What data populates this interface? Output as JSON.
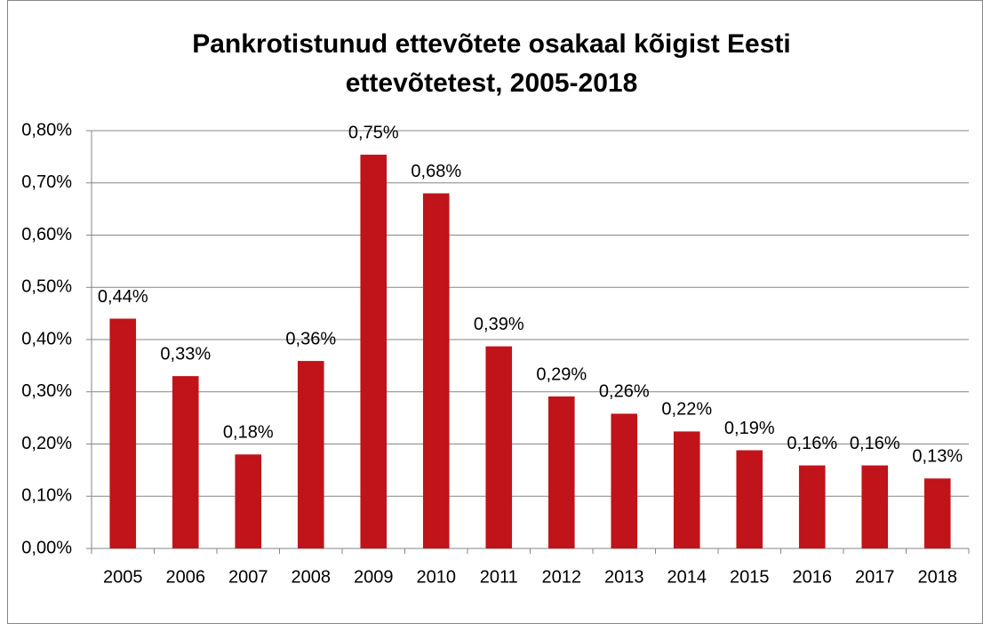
{
  "chart_data": {
    "type": "bar",
    "title": "Pankrotistunud ettevõtete osakaal kõigist Eesti ettevõtetest, 2005-2018",
    "categories": [
      "2005",
      "2006",
      "2007",
      "2008",
      "2009",
      "2010",
      "2011",
      "2012",
      "2013",
      "2014",
      "2015",
      "2016",
      "2017",
      "2018"
    ],
    "values": [
      0.44,
      0.33,
      0.18,
      0.359,
      0.754,
      0.68,
      0.387,
      0.291,
      0.258,
      0.224,
      0.188,
      0.159,
      0.159,
      0.134
    ],
    "value_labels": [
      "0,44%",
      "0,33%",
      "0,18%",
      "0,36%",
      "0,75%",
      "0,68%",
      "0,39%",
      "0,29%",
      "0,26%",
      "0,22%",
      "0,19%",
      "0,16%",
      "0,16%",
      "0,13%"
    ],
    "color": "#c0141a",
    "ylim": [
      0,
      0.8
    ],
    "yticks": [
      {
        "value": 0,
        "label": "0,00%"
      },
      {
        "value": 0.1,
        "label": "0,10%"
      },
      {
        "value": 0.2,
        "label": "0,20%"
      },
      {
        "value": 0.3,
        "label": "0,30%"
      },
      {
        "value": 0.4,
        "label": "0,40%"
      },
      {
        "value": 0.5,
        "label": "0,50%"
      },
      {
        "value": 0.6,
        "label": "0,60%"
      },
      {
        "value": 0.7,
        "label": "0,70%"
      },
      {
        "value": 0.8,
        "label": "0,80%"
      }
    ],
    "grid": true
  }
}
